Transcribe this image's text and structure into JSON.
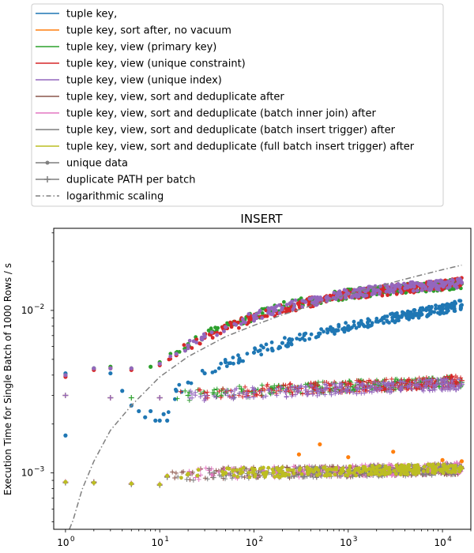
{
  "chart_data": {
    "type": "scatter",
    "title": "INSERT",
    "xlabel": "",
    "ylabel": "Execution Time for Single Batch of 1000 Rows / s",
    "xscale": "log",
    "yscale": "log",
    "xlim": [
      0.75,
      20000
    ],
    "ylim": [
      0.00045,
      0.032
    ],
    "grid": false,
    "legend_placement": "top",
    "x_ticks": [
      {
        "value": 1,
        "label": "10",
        "sup": "0"
      },
      {
        "value": 10,
        "label": "10",
        "sup": "1"
      },
      {
        "value": 100,
        "label": "10",
        "sup": "2"
      },
      {
        "value": 1000,
        "label": "10",
        "sup": "3"
      },
      {
        "value": 10000,
        "label": "10",
        "sup": "4"
      }
    ],
    "y_ticks": [
      {
        "value": 0.001,
        "label": "10",
        "sup": "−3"
      },
      {
        "value": 0.01,
        "label": "10",
        "sup": "−2"
      }
    ],
    "legend": [
      {
        "label": "tuple key,",
        "color": "#1f77b4",
        "style": "line"
      },
      {
        "label": "tuple key, sort after, no vacuum",
        "color": "#ff7f0e",
        "style": "line"
      },
      {
        "label": "tuple key, view (primary key)",
        "color": "#2ca02c",
        "style": "line"
      },
      {
        "label": "tuple key, view (unique constraint)",
        "color": "#d62728",
        "style": "line"
      },
      {
        "label": "tuple key, view (unique index)",
        "color": "#9467bd",
        "style": "line"
      },
      {
        "label": "tuple key, view, sort and deduplicate after",
        "color": "#8c564b",
        "style": "line"
      },
      {
        "label": "tuple key, view, sort and deduplicate (batch inner join) after",
        "color": "#e377c2",
        "style": "line"
      },
      {
        "label": "tuple key, view, sort and deduplicate (batch insert trigger) after",
        "color": "#7f7f7f",
        "style": "line"
      },
      {
        "label": "tuple key, view, sort and deduplicate (full batch insert trigger) after",
        "color": "#bcbd22",
        "style": "line"
      },
      {
        "label": "unique data",
        "color": "#7f7f7f",
        "style": "dot"
      },
      {
        "label": "duplicate PATH per batch",
        "color": "#7f7f7f",
        "style": "plus"
      },
      {
        "label": "logarithmic scaling",
        "color": "#7f7f7f",
        "style": "dashdot"
      }
    ],
    "series": [
      {
        "name": "tuple key,",
        "color": "#1f77b4",
        "marker": "dot",
        "points": [
          [
            1,
            0.0041
          ],
          [
            1,
            0.0017
          ],
          [
            2,
            0.0044
          ],
          [
            3,
            0.0041
          ],
          [
            4,
            0.0032
          ],
          [
            5,
            0.0026
          ],
          [
            6,
            0.0024
          ],
          [
            7,
            0.0022
          ],
          [
            8,
            0.0024
          ],
          [
            9,
            0.0021
          ],
          [
            10,
            0.0021
          ],
          [
            11,
            0.0023
          ],
          [
            12,
            0.0021
          ],
          [
            15,
            0.0032
          ],
          [
            20,
            0.0036
          ],
          [
            30,
            0.0041
          ],
          [
            50,
            0.0048
          ],
          [
            100,
            0.0055
          ],
          [
            200,
            0.0063
          ],
          [
            500,
            0.0072
          ],
          [
            1000,
            0.008
          ],
          [
            2000,
            0.0086
          ],
          [
            5000,
            0.0095
          ],
          [
            10000,
            0.0102
          ],
          [
            16000,
            0.0108
          ]
        ]
      },
      {
        "name": "tuple key, view (primary key)",
        "color": "#2ca02c",
        "marker": "dot",
        "points": [
          [
            1,
            0.004
          ],
          [
            2,
            0.0044
          ],
          [
            3,
            0.0045
          ],
          [
            5,
            0.0044
          ],
          [
            8,
            0.0045
          ],
          [
            10,
            0.0048
          ],
          [
            15,
            0.0055
          ],
          [
            20,
            0.0062
          ],
          [
            30,
            0.007
          ],
          [
            50,
            0.008
          ],
          [
            100,
            0.0093
          ],
          [
            200,
            0.0105
          ],
          [
            500,
            0.0118
          ],
          [
            1000,
            0.0126
          ],
          [
            2000,
            0.0132
          ],
          [
            5000,
            0.0138
          ],
          [
            10000,
            0.0142
          ],
          [
            16000,
            0.0146
          ]
        ]
      },
      {
        "name": "tuple key, view (unique constraint)",
        "color": "#d62728",
        "marker": "dot",
        "points": [
          [
            1,
            0.0039
          ],
          [
            2,
            0.0043
          ],
          [
            3,
            0.0044
          ],
          [
            5,
            0.0043
          ],
          [
            10,
            0.0046
          ],
          [
            15,
            0.0053
          ],
          [
            20,
            0.006
          ],
          [
            30,
            0.0068
          ],
          [
            50,
            0.0078
          ],
          [
            100,
            0.009
          ],
          [
            200,
            0.0102
          ],
          [
            500,
            0.0116
          ],
          [
            1000,
            0.0125
          ],
          [
            2000,
            0.0131
          ],
          [
            5000,
            0.0138
          ],
          [
            10000,
            0.0143
          ],
          [
            16000,
            0.0148
          ]
        ]
      },
      {
        "name": "tuple key, view (unique index)",
        "color": "#9467bd",
        "marker": "dot",
        "points": [
          [
            1,
            0.004
          ],
          [
            2,
            0.0044
          ],
          [
            3,
            0.0044
          ],
          [
            5,
            0.0044
          ],
          [
            10,
            0.0047
          ],
          [
            15,
            0.0054
          ],
          [
            20,
            0.0061
          ],
          [
            30,
            0.0069
          ],
          [
            50,
            0.0079
          ],
          [
            100,
            0.0092
          ],
          [
            200,
            0.0104
          ],
          [
            500,
            0.0117
          ],
          [
            1000,
            0.0127
          ],
          [
            2000,
            0.0133
          ],
          [
            5000,
            0.014
          ],
          [
            10000,
            0.0144
          ],
          [
            16000,
            0.0148
          ]
        ]
      },
      {
        "name": "tuple key, view (primary key)",
        "color": "#2ca02c",
        "marker": "plus",
        "points": [
          [
            1,
            0.003
          ],
          [
            3,
            0.0029
          ],
          [
            5,
            0.0029
          ],
          [
            10,
            0.0029
          ],
          [
            20,
            0.003
          ],
          [
            50,
            0.0031
          ],
          [
            100,
            0.0032
          ],
          [
            300,
            0.0033
          ],
          [
            1000,
            0.0034
          ],
          [
            3000,
            0.0035
          ],
          [
            10000,
            0.0036
          ],
          [
            16000,
            0.0036
          ]
        ]
      },
      {
        "name": "tuple key, view (unique constraint)",
        "color": "#d62728",
        "marker": "plus",
        "points": [
          [
            1,
            0.003
          ],
          [
            3,
            0.0029
          ],
          [
            10,
            0.0029
          ],
          [
            30,
            0.0031
          ],
          [
            100,
            0.0032
          ],
          [
            300,
            0.0033
          ],
          [
            1000,
            0.0034
          ],
          [
            3000,
            0.0035
          ],
          [
            10000,
            0.0036
          ],
          [
            16000,
            0.0037
          ]
        ]
      },
      {
        "name": "tuple key, view (unique index)",
        "color": "#9467bd",
        "marker": "plus",
        "points": [
          [
            1,
            0.003
          ],
          [
            3,
            0.0029
          ],
          [
            10,
            0.0029
          ],
          [
            30,
            0.003
          ],
          [
            100,
            0.0031
          ],
          [
            300,
            0.0032
          ],
          [
            1000,
            0.0033
          ],
          [
            3000,
            0.0034
          ],
          [
            10000,
            0.0035
          ],
          [
            16000,
            0.0035
          ]
        ]
      },
      {
        "name": "tuple key, view, sort and deduplicate after",
        "color": "#8c564b",
        "marker": "plus",
        "points": [
          [
            1,
            0.00088
          ],
          [
            2,
            0.00088
          ],
          [
            5,
            0.00086
          ],
          [
            10,
            0.00085
          ],
          [
            12,
            0.00095
          ],
          [
            20,
            0.00098
          ],
          [
            50,
            0.001
          ],
          [
            100,
            0.001
          ],
          [
            300,
            0.00101
          ],
          [
            1000,
            0.00102
          ],
          [
            3000,
            0.00104
          ],
          [
            10000,
            0.00105
          ],
          [
            16000,
            0.00106
          ]
        ]
      },
      {
        "name": "tuple key, view, sort and deduplicate (batch inner join) after",
        "color": "#e377c2",
        "marker": "plus",
        "points": [
          [
            1,
            0.00088
          ],
          [
            2,
            0.00087
          ],
          [
            5,
            0.00086
          ],
          [
            10,
            0.00085
          ],
          [
            12,
            0.00096
          ],
          [
            20,
            0.00098
          ],
          [
            50,
            0.001
          ],
          [
            200,
            0.00101
          ],
          [
            1000,
            0.00103
          ],
          [
            5000,
            0.00105
          ],
          [
            16000,
            0.00107
          ]
        ]
      },
      {
        "name": "tuple key, view, sort and deduplicate (batch insert trigger) after",
        "color": "#7f7f7f",
        "marker": "plus",
        "points": [
          [
            1,
            0.00087
          ],
          [
            2,
            0.00087
          ],
          [
            5,
            0.00085
          ],
          [
            10,
            0.00084
          ],
          [
            12,
            0.00094
          ],
          [
            20,
            0.00097
          ],
          [
            50,
            0.00099
          ],
          [
            200,
            0.001
          ],
          [
            1000,
            0.00102
          ],
          [
            5000,
            0.00104
          ],
          [
            16000,
            0.00106
          ]
        ]
      },
      {
        "name": "tuple key, view, sort and deduplicate (full batch insert trigger) after",
        "color": "#bcbd22",
        "marker": "dot",
        "points": [
          [
            1,
            0.00088
          ],
          [
            2,
            0.00087
          ],
          [
            5,
            0.00086
          ],
          [
            10,
            0.00085
          ],
          [
            12,
            0.00096
          ],
          [
            20,
            0.00099
          ],
          [
            50,
            0.001
          ],
          [
            200,
            0.00101
          ],
          [
            1000,
            0.00103
          ],
          [
            5000,
            0.00105
          ],
          [
            16000,
            0.00107
          ]
        ]
      },
      {
        "name": "tuple key, sort after, no vacuum",
        "color": "#ff7f0e",
        "marker": "dot",
        "points": [
          [
            300,
            0.0013
          ],
          [
            500,
            0.0015
          ],
          [
            1000,
            0.00125
          ],
          [
            3000,
            0.00135
          ],
          [
            10000,
            0.0012
          ],
          [
            16000,
            0.00118
          ]
        ]
      },
      {
        "name": "logarithmic scaling",
        "color": "#7f7f7f",
        "style": "dashdot",
        "points": [
          [
            1.1,
            0.00045
          ],
          [
            1.2,
            0.00051
          ],
          [
            1.5,
            0.00079
          ],
          [
            2,
            0.00118
          ],
          [
            3,
            0.00183
          ],
          [
            5,
            0.0026
          ],
          [
            10,
            0.0039
          ],
          [
            20,
            0.0052
          ],
          [
            50,
            0.0069
          ],
          [
            100,
            0.0081
          ],
          [
            200,
            0.0094
          ],
          [
            500,
            0.0111
          ],
          [
            1000,
            0.0126
          ],
          [
            2000,
            0.014
          ],
          [
            5000,
            0.0161
          ],
          [
            10000,
            0.0178
          ],
          [
            16000,
            0.019
          ]
        ]
      }
    ]
  }
}
